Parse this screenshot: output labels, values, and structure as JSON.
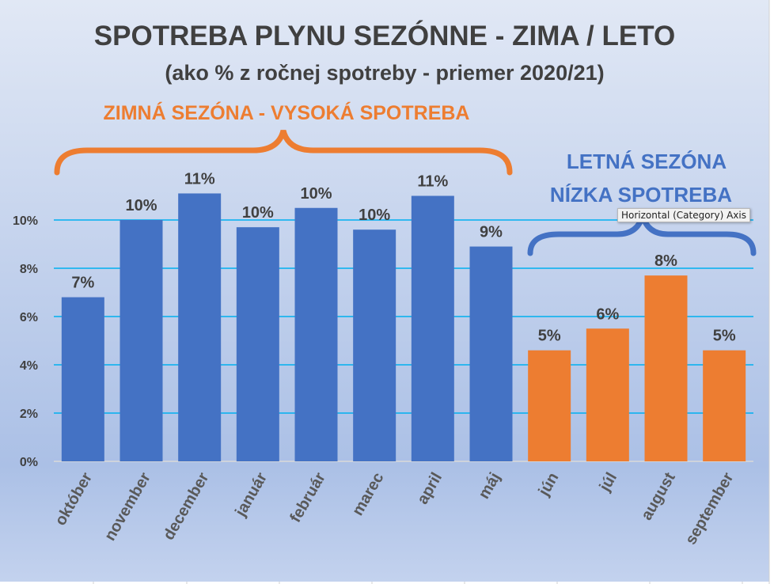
{
  "chart_data": {
    "type": "bar",
    "title": "SPOTREBA PLYNU SEZÓNNE - ZIMA / LETO",
    "subtitle": "(ako % z ročnej spotreby - priemer 2020/21)",
    "categories": [
      "október",
      "november",
      "december",
      "január",
      "február",
      "marec",
      "april",
      "máj",
      "jún",
      "júl",
      "august",
      "september"
    ],
    "values": [
      6.8,
      10.0,
      11.1,
      9.7,
      10.5,
      9.6,
      11.0,
      8.9,
      4.6,
      5.5,
      7.7,
      4.6
    ],
    "data_labels": [
      "7%",
      "10%",
      "11%",
      "10%",
      "10%",
      "10%",
      "11%",
      "9%",
      "5%",
      "6%",
      "8%",
      "5%"
    ],
    "bar_colors": [
      "#4472c4",
      "#4472c4",
      "#4472c4",
      "#4472c4",
      "#4472c4",
      "#4472c4",
      "#4472c4",
      "#4472c4",
      "#ed7d31",
      "#ed7d31",
      "#ed7d31",
      "#ed7d31"
    ],
    "yticks": [
      "0%",
      "2%",
      "4%",
      "6%",
      "8%",
      "10%"
    ],
    "ylim": [
      0,
      12
    ],
    "grid": true,
    "gridline_color": "#00b0f0",
    "annotations": {
      "winter": "ZIMNÁ SEZÓNA - VYSOKÁ SPOTREBA",
      "summer_line1": "LETNÁ SEZÓNA",
      "summer_line2": "NÍZKA SPOTREBA",
      "winter_color": "#ed7d31",
      "summer_color": "#4472c4"
    }
  },
  "tooltip": "Horizontal (Category) Axis"
}
